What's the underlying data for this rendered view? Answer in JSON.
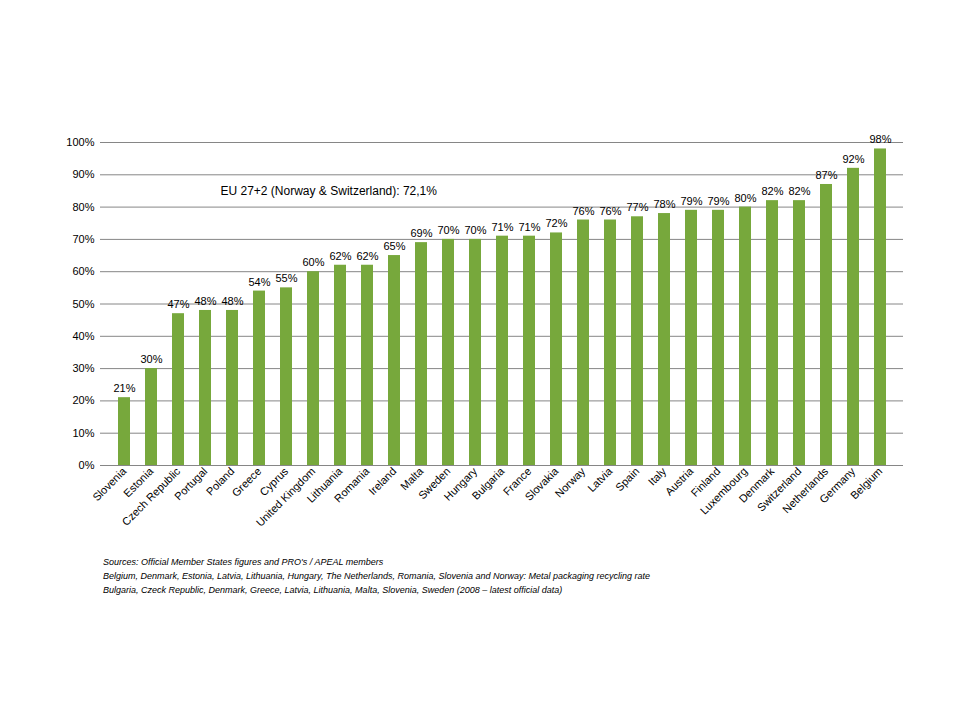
{
  "chart_data": {
    "type": "bar",
    "annotation": "EU 27+2 (Norway & Switzerland): 72,1%",
    "categories": [
      "Slovenia",
      "Estonia",
      "Czech Republic",
      "Portugal",
      "Poland",
      "Greece",
      "Cyprus",
      "United Kingdom",
      "Lithuania",
      "Romania",
      "Ireland",
      "Malta",
      "Sweden",
      "Hungary",
      "Bulgaria",
      "France",
      "Slovakia",
      "Norway",
      "Latvia",
      "Spain",
      "Italy",
      "Austria",
      "Finland",
      "Luxembourg",
      "Denmark",
      "Switzerland",
      "Netherlands",
      "Germany",
      "Belgium"
    ],
    "values": [
      21,
      30,
      47,
      48,
      48,
      54,
      55,
      60,
      62,
      62,
      65,
      69,
      70,
      70,
      71,
      71,
      72,
      76,
      76,
      77,
      78,
      79,
      79,
      80,
      82,
      82,
      87,
      92,
      98
    ],
    "value_labels": [
      "21%",
      "30%",
      "47%",
      "48%",
      "48%",
      "54%",
      "55%",
      "60%",
      "62%",
      "62%",
      "65%",
      "69%",
      "70%",
      "70%",
      "71%",
      "71%",
      "72%",
      "76%",
      "76%",
      "77%",
      "78%",
      "79%",
      "79%",
      "80%",
      "82%",
      "82%",
      "87%",
      "92%",
      "98%"
    ],
    "data_labels": true,
    "color": "#77a83c",
    "ylim": [
      0,
      100
    ],
    "yticks": [
      {
        "value": 0,
        "label": "0%"
      },
      {
        "value": 10,
        "label": "10%"
      },
      {
        "value": 20,
        "label": "20%"
      },
      {
        "value": 30,
        "label": "30%"
      },
      {
        "value": 40,
        "label": "40%"
      },
      {
        "value": 50,
        "label": "50%"
      },
      {
        "value": 60,
        "label": "60%"
      },
      {
        "value": 70,
        "label": "70%"
      },
      {
        "value": 80,
        "label": "80%"
      },
      {
        "value": 90,
        "label": "90%"
      },
      {
        "value": 100,
        "label": "100%"
      }
    ],
    "grid": true,
    "notes": [
      "Sources:  Official Member States figures and PRO's / APEAL members",
      "Belgium, Denmark, Estonia, Latvia, Lithuania, Hungary, The Netherlands, Romania, Slovenia and Norway: Metal packaging recycling rate",
      "Bulgaria, Czeck Republic, Denmark, Greece, Latvia, Lithuania, Malta, Slovenia, Sweden (2008 – latest official data)"
    ]
  }
}
